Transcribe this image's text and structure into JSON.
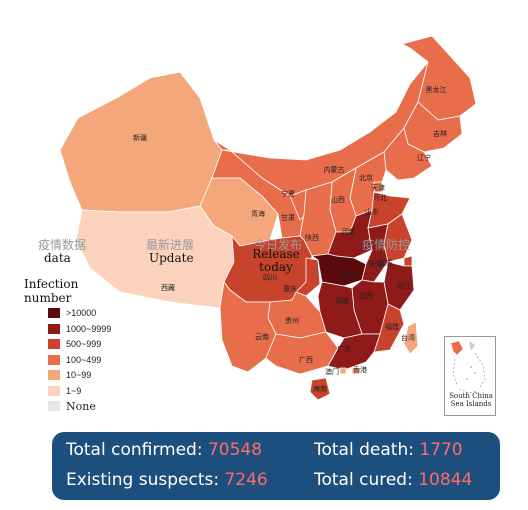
{
  "tabs": [
    {
      "zh": "疫情数据",
      "en": "data"
    },
    {
      "zh": "最新进展",
      "en": "Update"
    },
    {
      "zh": "今日发布",
      "en": "Release today"
    },
    {
      "zh": "疫情防控",
      "en": ""
    }
  ],
  "legend": {
    "title": "Infection number",
    "items": [
      {
        "label": ">10000",
        "color": "#5a0a0a"
      },
      {
        "label": "1000~9999",
        "color": "#8e1a1a"
      },
      {
        "label": "500~999",
        "color": "#c8432b"
      },
      {
        "label": "100~499",
        "color": "#e76d4b"
      },
      {
        "label": "10~99",
        "color": "#f5a77c"
      },
      {
        "label": "1~9",
        "color": "#fbd3bd"
      },
      {
        "label": "None",
        "color": "#e6e6e6"
      }
    ]
  },
  "provinces": [
    {
      "name": "新疆",
      "level": 4
    },
    {
      "name": "西藏",
      "level": 5
    },
    {
      "name": "青海",
      "level": 4
    },
    {
      "name": "甘肃",
      "level": 3
    },
    {
      "name": "宁夏",
      "level": 3
    },
    {
      "name": "内蒙古",
      "level": 3
    },
    {
      "name": "黑龙江",
      "level": 3
    },
    {
      "name": "吉林",
      "level": 3
    },
    {
      "name": "辽宁",
      "level": 3
    },
    {
      "name": "北京",
      "level": 2
    },
    {
      "name": "天津",
      "level": 3
    },
    {
      "name": "河北",
      "level": 3
    },
    {
      "name": "山西",
      "level": 3
    },
    {
      "name": "山东",
      "level": 2
    },
    {
      "name": "陕西",
      "level": 3
    },
    {
      "name": "河南",
      "level": 1
    },
    {
      "name": "四川",
      "level": 2
    },
    {
      "name": "重庆",
      "level": 2
    },
    {
      "name": "湖北",
      "level": 0
    },
    {
      "name": "安徽",
      "level": 1
    },
    {
      "name": "江苏",
      "level": 2
    },
    {
      "name": "上海",
      "level": 2
    },
    {
      "name": "浙江",
      "level": 1
    },
    {
      "name": "湖南",
      "level": 1
    },
    {
      "name": "江西",
      "level": 1
    },
    {
      "name": "贵州",
      "level": 3
    },
    {
      "name": "云南",
      "level": 3
    },
    {
      "name": "广西",
      "level": 3
    },
    {
      "name": "广东",
      "level": 1
    },
    {
      "name": "福建",
      "level": 2
    },
    {
      "name": "台湾",
      "level": 4
    },
    {
      "name": "香港",
      "level": 4
    },
    {
      "name": "澳门",
      "level": 4
    },
    {
      "name": "海南",
      "level": 2
    }
  ],
  "inset": {
    "label": "South China Sea Islands"
  },
  "stats": {
    "confirmed_label": "Total confirmed:",
    "confirmed_value": "70548",
    "death_label": "Total death:",
    "death_value": "1770",
    "suspects_label": "Existing suspects:",
    "suspects_value": "7246",
    "cured_label": "Total cured:",
    "cured_value": "10844"
  }
}
